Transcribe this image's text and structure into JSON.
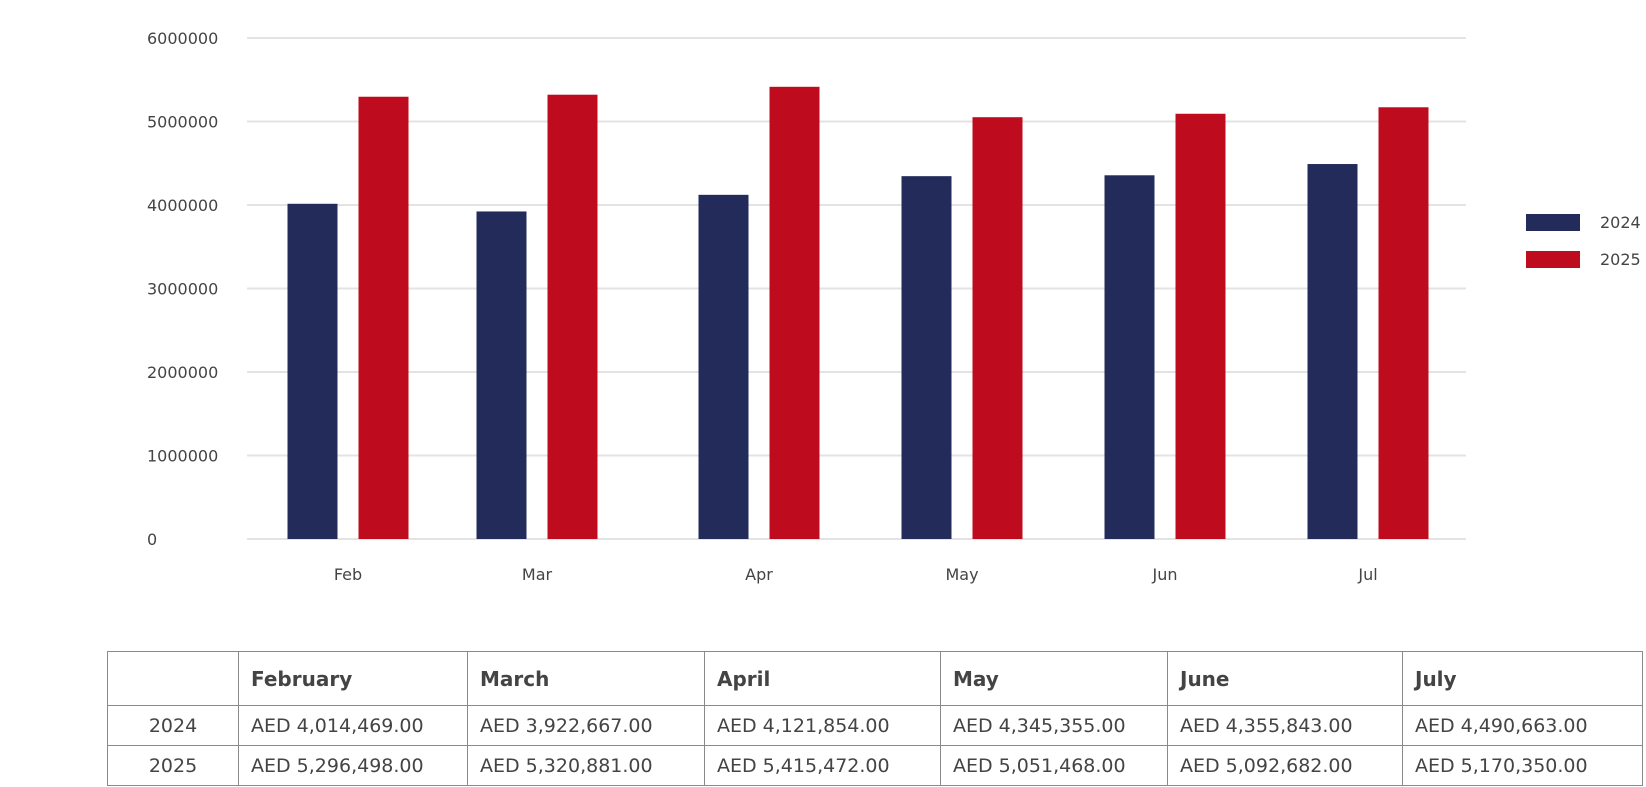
{
  "chart_data": {
    "type": "bar",
    "categories": [
      "Feb",
      "Mar",
      "Apr",
      "May",
      "Jun",
      "Jul"
    ],
    "series": [
      {
        "name": "2024",
        "color": "#232b5b",
        "values": [
          4014469,
          3922667,
          4121854,
          4345355,
          4355843,
          4490663
        ]
      },
      {
        "name": "2025",
        "color": "#be0b1d",
        "values": [
          5296498,
          5320881,
          5415472,
          5051468,
          5092682,
          5170350
        ]
      }
    ],
    "yticks": [
      "0",
      "1000000",
      "2000000",
      "3000000",
      "4000000",
      "5000000",
      "6000000"
    ],
    "ylim": [
      0,
      6000000
    ],
    "grid": true,
    "legend_position": "right",
    "title": "",
    "xlabel": "",
    "ylabel": ""
  },
  "table": {
    "header": [
      "",
      "February",
      "March",
      "April",
      "May",
      "June",
      "July"
    ],
    "rows": [
      {
        "label": "2024",
        "cells": [
          "AED 4,014,469.00",
          "AED 3,922,667.00",
          "AED 4,121,854.00",
          "AED 4,345,355.00",
          "AED 4,355,843.00",
          "AED 4,490,663.00"
        ]
      },
      {
        "label": "2025",
        "cells": [
          "AED 5,296,498.00",
          "AED 5,320,881.00",
          "AED 5,415,472.00",
          "AED 5,051,468.00",
          "AED 5,092,682.00",
          "AED 5,170,350.00"
        ]
      }
    ]
  }
}
